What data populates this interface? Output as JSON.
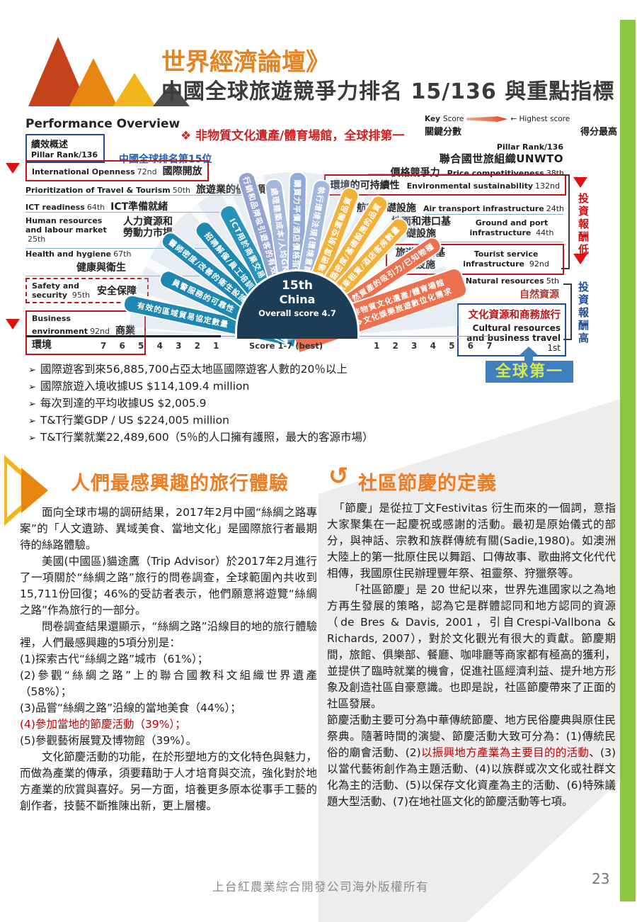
{
  "header": {
    "kicker": "世界經濟論壇》",
    "title": "中國全球旅遊競爭力排名 15/136 與重點指標"
  },
  "chart": {
    "title": "Performance Overview",
    "pillar_box": {
      "line1": "績效概述",
      "line2": "Pillar Rank/136"
    },
    "china_rank": "中國全球排名第15位",
    "headline": "❖ 非物質文化遺產/體育場館，全球排第一",
    "key": {
      "key": "Key",
      "score": "Score",
      "score_zh": "關鍵分數",
      "highest": "← Highest score",
      "highest_zh": "得分最高",
      "pillar_rank": "Pillar Rank/136",
      "unwto": "聯合國世旅組織UNWTO"
    },
    "left_pillars": [
      {
        "en": "International Openness",
        "rank": "72nd",
        "zh": "國際開放"
      },
      {
        "en": "Prioritization of Travel & Tourism",
        "rank": "50th",
        "zh": "旅遊業的優先順序"
      },
      {
        "en": "ICT readiness",
        "rank": "64th",
        "zh": "ICT準備就緒"
      },
      {
        "en": "Human resources and labour market",
        "rank": "25th",
        "zh": "人力資源和勞動力市場"
      },
      {
        "en": "Health and hygiene",
        "rank": "67th",
        "zh": "健康與衛生"
      },
      {
        "en": "Safety and security",
        "rank": "95th",
        "zh": "安全保障"
      },
      {
        "en": "Business environment",
        "rank": "92nd",
        "zh": "商業環境"
      }
    ],
    "right_pillars": [
      {
        "zh": "價格競爭力",
        "en": "Price competitiveness",
        "rank": "38th"
      },
      {
        "zh": "環境的可持續性",
        "en": "Environmental sustainability",
        "rank": "132nd"
      },
      {
        "zh": "航空基礎設施",
        "en": "Air transport infrastructure",
        "rank": "24th"
      },
      {
        "zh": "地面和港口基礎設施",
        "en": "Ground and port infrastructure",
        "rank": "44th"
      },
      {
        "zh": "旅遊服務基礎設施",
        "en": "Tourist service infrastructure",
        "rank": "92nd"
      },
      {
        "zh": "自然資源",
        "en": "Natural resources",
        "rank": "5th"
      },
      {
        "zh": "文化資源和商務旅行",
        "en": "Cultural resources and business travel",
        "rank": "1st"
      }
    ],
    "segments": [
      "有效的區域貿易協定數量",
      "員警服務的可靠性",
      "醫師密度/改善的衛生設施",
      "招聘解僱/員工培訓",
      "ICT用於商業交易",
      "行銷和品牌吸引遊客的有效性",
      "處理建築成本/人均GNI",
      "購買力平價/酒店價格指數",
      "執行環境法規(環境意識)",
      "機場密度/航空運輸品質",
      "鐵路密度/基礎設施的品質",
      "汽車租賃/酒店客房數量",
      "自然資產的吸引力/已知物種",
      "非物質文化遺產/體育場館",
      "❖文化娛樂旅遊數位化需求"
    ],
    "center": {
      "rank": "15th",
      "country": "China",
      "score": "Overall score 4.7"
    },
    "axis": {
      "left": "7 6 5 4 3 2 1",
      "center": "Score 1-7 (best)",
      "right": "1 2 3 4 5 6 7"
    },
    "roi_low": "投資報酬低",
    "roi_high": "投資報酬高",
    "global_first": "全球第一"
  },
  "bullets": [
    "國際遊客到來56,885,700占亞太地區國際遊客人數的20％以上",
    "國際旅遊入境收據US $114,109.4 million",
    "每次到達的平均收據US $2,005.9",
    "T&T行業GDP / US $224,005 million",
    "T&T行業就業22,489,600（5％的人口擁有護照，最大的客源市場）"
  ],
  "bullet_glyph": "➢",
  "left_article": {
    "title": "人們最感興趣的旅行體驗",
    "p1": "面向全球市場的調研結果，2017年2月中國“絲綢之路專案”的「人文遺跡、異域美食、當地文化」是國際旅行者最期待的絲路體驗。",
    "p2": "美國(中國區)貓途鷹（Trip Advisor）於2017年2月進行了一項關於“絲綢之路”旅行的問卷調查，全球範圍內共收到15,711份回復；46%的受訪者表示，他們願意將遊覽“絲綢之路”作為旅行的一部分。",
    "p3": "問卷調查結果還顯示，“絲綢之路”沿線目的地的旅行體驗裡，人們最感興趣的5項分別是：",
    "item1": "(1)探索古代“絲綢之路”城市（61%）；",
    "item2": "(2)參觀“絲綢之路”上的聯合國教科文組織世界遺產（58%）；",
    "item3": "(3)品嘗“絲綢之路”沿線的當地美食（44%）；",
    "item4": "(4)參加當地的節慶活動（39%）；",
    "item5": "(5)參觀藝術展覽及博物館（39%）。",
    "p4": "文化節慶活動的功能，在於形塑地方的文化特色與魅力，而做為產業的傳承，須要藉助于人才培育與交流，強化對於地方產業的欣賞與喜好。另一方面，培養更多原本從事手工藝的創作者，技藝不斷推陳出新，更上層樓。"
  },
  "right_article": {
    "icon": "↺",
    "title": "社區節慶的定義",
    "p1": "「節慶」是從拉丁文Festivitas 衍生而來的一個詞，意指大家聚集在一起慶祝或感謝的活動。最初是原始儀式的部分，與神話、宗教和族群傳統有關(Sadie,1980)。如澳洲大陸上的第一批原住民以舞蹈、口傳故事、歌曲將文化代代相傳，我國原住民辦理豐年祭、祖靈祭、狩獵祭等。",
    "p2": "「社區節慶」是 20 世紀以來，世界先進國家以之為地方再生發展的策略，認為它是群體認同和地方認同的資源（de Bres & Davis, 2001，引自Crespi-Vallbona & Richards, 2007），對於文化觀光有很大的貢獻。節慶期間，旅館、俱樂部、餐廳、咖啡廳等商家都有極高的獲利，並提供了臨時就業的機會，促進社區經濟利益、提升地方形象及創造社區自豪意識。也即是說，社區節慶帶來了正面的社區發展。",
    "p3_rich": [
      {
        "text": "節慶活動主要可分為中華傳統節慶、地方民俗慶典與原住民祭典。隨著時間的演變、節慶活動大致可分為：(1)傳統民俗的廟會活動、(2)"
      },
      {
        "text": "以振興地方產業為主要目的的活動",
        "color": "#c00000"
      },
      {
        "text": "、(3)以當代藝術創作為主題活動、(4)以族群或次文化或社群文化為主的活動、(5)以保存文化資產為主的活動、(6)特殊議題大型活動、(7)在地社區文化的節慶活動等七項。"
      }
    ]
  },
  "footer": {
    "copyright": "上台紅農業綜合開發公司海外版權所有",
    "page": "23"
  },
  "colors": {
    "accent_orange": "#ed7d23",
    "accent_green": "#8cc63e",
    "alert_red": "#c11515",
    "brand_blue": "#1f4e9c"
  }
}
